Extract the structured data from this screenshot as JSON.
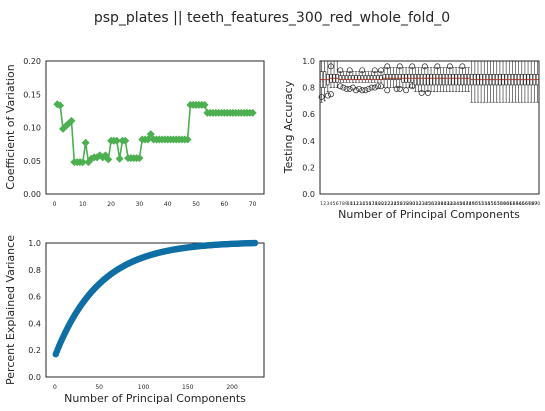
{
  "figure": {
    "suptitle": "psp_plates || teeth_features_300_red_whole_fold_0"
  },
  "colors": {
    "cv_green": "#4caf50",
    "box_black": "#222222",
    "median_red": "#c0392b",
    "pev_blue": "#0f6fa5",
    "axes_frame": "#262626"
  },
  "chart_data": [
    {
      "id": "cv",
      "type": "line",
      "marker": "diamond",
      "title": "",
      "xlabel": "",
      "ylabel": "Coefficient of Variation",
      "xlim": [
        -3,
        74
      ],
      "ylim": [
        0,
        0.2
      ],
      "xticks": [
        0,
        10,
        20,
        30,
        40,
        50,
        60,
        70
      ],
      "xtick_labels": [
        "0",
        "10",
        "20",
        "30",
        "40",
        "50",
        "60",
        "70"
      ],
      "yticks": [
        0,
        0.05,
        0.1,
        0.15,
        0.2
      ],
      "ytick_labels": [
        "0.00",
        "0.05",
        "0.10",
        "0.15",
        "0.20"
      ],
      "x": [
        1,
        2,
        3,
        4,
        5,
        6,
        7,
        8,
        9,
        10,
        11,
        12,
        13,
        14,
        15,
        16,
        17,
        18,
        19,
        20,
        21,
        22,
        23,
        24,
        25,
        26,
        27,
        28,
        29,
        30,
        31,
        32,
        33,
        34,
        35,
        36,
        37,
        38,
        39,
        40,
        41,
        42,
        43,
        44,
        45,
        46,
        47,
        48,
        49,
        50,
        51,
        52,
        53,
        54,
        55,
        56,
        57,
        58,
        59,
        60,
        61,
        62,
        63,
        64,
        65,
        66,
        67,
        68,
        69,
        70
      ],
      "y": [
        0.135,
        0.133,
        0.098,
        0.102,
        0.106,
        0.11,
        0.048,
        0.048,
        0.048,
        0.048,
        0.077,
        0.048,
        0.053,
        0.055,
        0.055,
        0.058,
        0.055,
        0.058,
        0.052,
        0.08,
        0.08,
        0.08,
        0.053,
        0.08,
        0.08,
        0.054,
        0.054,
        0.054,
        0.054,
        0.054,
        0.082,
        0.082,
        0.082,
        0.09,
        0.082,
        0.082,
        0.082,
        0.082,
        0.082,
        0.082,
        0.082,
        0.082,
        0.082,
        0.082,
        0.082,
        0.082,
        0.082,
        0.134,
        0.134,
        0.134,
        0.134,
        0.134,
        0.134,
        0.122,
        0.122,
        0.122,
        0.122,
        0.122,
        0.122,
        0.122,
        0.122,
        0.122,
        0.122,
        0.122,
        0.122,
        0.122,
        0.122,
        0.122,
        0.122,
        0.122
      ]
    },
    {
      "id": "acc",
      "type": "box",
      "title": "",
      "xlabel": "Number of Principal Components",
      "ylabel": "Testing Accuracy",
      "ylim": [
        0,
        1.0
      ],
      "yticks": [
        0,
        0.2,
        0.4,
        0.6,
        0.8,
        1.0
      ],
      "ytick_labels": [
        "0.0",
        "0.2",
        "0.4",
        "0.6",
        "0.8",
        "1.0"
      ],
      "tick_label_note": "70 densely packed, overlapping x tick labels (1..70)",
      "x": [
        1,
        2,
        3,
        4,
        5,
        6,
        7,
        8,
        9,
        10,
        11,
        12,
        13,
        14,
        15,
        16,
        17,
        18,
        19,
        20,
        21,
        22,
        23,
        24,
        25,
        26,
        27,
        28,
        29,
        30,
        31,
        32,
        33,
        34,
        35,
        36,
        37,
        38,
        39,
        40,
        41,
        42,
        43,
        44,
        45,
        46,
        47,
        48,
        49,
        50,
        51,
        52,
        53,
        54,
        55,
        56,
        57,
        58,
        59,
        60,
        61,
        62,
        63,
        64,
        65,
        66,
        67,
        68,
        69,
        70
      ],
      "median": [
        0.86,
        0.86,
        0.86,
        0.87,
        0.87,
        0.87,
        0.86,
        0.86,
        0.86,
        0.86,
        0.86,
        0.86,
        0.86,
        0.86,
        0.86,
        0.86,
        0.86,
        0.86,
        0.86,
        0.86,
        0.87,
        0.87,
        0.87,
        0.87,
        0.87,
        0.87,
        0.87,
        0.87,
        0.87,
        0.87,
        0.87,
        0.87,
        0.87,
        0.87,
        0.87,
        0.87,
        0.87,
        0.87,
        0.87,
        0.87,
        0.87,
        0.87,
        0.87,
        0.87,
        0.87,
        0.87,
        0.87,
        0.87,
        0.86,
        0.86,
        0.86,
        0.86,
        0.86,
        0.86,
        0.86,
        0.86,
        0.86,
        0.86,
        0.86,
        0.86,
        0.86,
        0.86,
        0.86,
        0.86,
        0.86,
        0.86,
        0.86,
        0.86,
        0.86,
        0.86
      ],
      "q1": [
        0.8,
        0.8,
        0.82,
        0.84,
        0.84,
        0.84,
        0.86,
        0.86,
        0.86,
        0.86,
        0.86,
        0.86,
        0.86,
        0.86,
        0.86,
        0.86,
        0.86,
        0.86,
        0.86,
        0.86,
        0.86,
        0.86,
        0.86,
        0.86,
        0.86,
        0.86,
        0.84,
        0.84,
        0.84,
        0.84,
        0.82,
        0.82,
        0.82,
        0.82,
        0.82,
        0.82,
        0.82,
        0.82,
        0.82,
        0.82,
        0.82,
        0.82,
        0.82,
        0.82,
        0.82,
        0.82,
        0.82,
        0.82,
        0.82,
        0.82,
        0.82,
        0.82,
        0.82,
        0.82,
        0.82,
        0.82,
        0.82,
        0.82,
        0.82,
        0.82,
        0.82,
        0.82,
        0.82,
        0.82,
        0.82,
        0.82,
        0.82,
        0.82,
        0.82,
        0.82
      ],
      "q3": [
        0.92,
        0.92,
        0.9,
        0.9,
        0.9,
        0.9,
        0.89,
        0.89,
        0.89,
        0.89,
        0.89,
        0.89,
        0.89,
        0.89,
        0.89,
        0.89,
        0.89,
        0.89,
        0.89,
        0.89,
        0.9,
        0.9,
        0.9,
        0.9,
        0.9,
        0.9,
        0.9,
        0.9,
        0.9,
        0.9,
        0.9,
        0.9,
        0.9,
        0.9,
        0.9,
        0.9,
        0.9,
        0.9,
        0.9,
        0.9,
        0.9,
        0.9,
        0.9,
        0.9,
        0.9,
        0.9,
        0.9,
        0.9,
        0.9,
        0.9,
        0.9,
        0.9,
        0.9,
        0.9,
        0.9,
        0.9,
        0.9,
        0.9,
        0.9,
        0.9,
        0.9,
        0.9,
        0.9,
        0.9,
        0.9,
        0.9,
        0.9,
        0.9,
        0.9,
        0.9
      ],
      "whisker_low": [
        0.69,
        0.7,
        0.77,
        0.8,
        0.8,
        0.8,
        0.84,
        0.84,
        0.84,
        0.84,
        0.84,
        0.84,
        0.84,
        0.84,
        0.84,
        0.84,
        0.84,
        0.84,
        0.84,
        0.84,
        0.8,
        0.8,
        0.8,
        0.8,
        0.8,
        0.8,
        0.8,
        0.8,
        0.8,
        0.8,
        0.77,
        0.77,
        0.77,
        0.77,
        0.77,
        0.77,
        0.77,
        0.77,
        0.77,
        0.77,
        0.77,
        0.77,
        0.77,
        0.77,
        0.77,
        0.77,
        0.77,
        0.77,
        0.69,
        0.69,
        0.69,
        0.69,
        0.69,
        0.69,
        0.69,
        0.69,
        0.69,
        0.69,
        0.69,
        0.69,
        0.69,
        0.69,
        0.69,
        0.69,
        0.69,
        0.69,
        0.69,
        0.69,
        0.69,
        0.69
      ],
      "whisker_high": [
        1.0,
        1.0,
        1.0,
        1.0,
        1.0,
        1.0,
        0.92,
        0.92,
        0.92,
        0.92,
        0.92,
        0.92,
        0.92,
        0.92,
        0.92,
        0.92,
        0.92,
        0.92,
        0.92,
        0.92,
        0.95,
        0.95,
        0.95,
        0.95,
        0.95,
        0.95,
        0.95,
        0.95,
        0.95,
        0.95,
        0.95,
        0.95,
        0.95,
        0.95,
        0.95,
        0.95,
        0.95,
        0.95,
        0.95,
        0.95,
        0.95,
        0.95,
        0.95,
        0.95,
        0.95,
        0.95,
        0.95,
        0.95,
        1.0,
        1.0,
        1.0,
        1.0,
        1.0,
        1.0,
        1.0,
        1.0,
        1.0,
        1.0,
        1.0,
        1.0,
        1.0,
        1.0,
        1.0,
        1.0,
        1.0,
        1.0,
        1.0,
        1.0,
        1.0,
        1.0
      ],
      "outliers": [
        [
          1,
          0.73
        ],
        [
          3,
          0.74
        ],
        [
          4,
          0.75
        ],
        [
          7,
          0.81
        ],
        [
          8,
          0.8
        ],
        [
          9,
          0.79
        ],
        [
          10,
          0.79
        ],
        [
          11,
          0.8
        ],
        [
          12,
          0.78
        ],
        [
          13,
          0.79
        ],
        [
          14,
          0.78
        ],
        [
          15,
          0.78
        ],
        [
          16,
          0.79
        ],
        [
          17,
          0.8
        ],
        [
          18,
          0.8
        ],
        [
          19,
          0.81
        ],
        [
          20,
          0.81
        ],
        [
          7,
          0.93
        ],
        [
          10,
          0.93
        ],
        [
          14,
          0.93
        ],
        [
          18,
          0.93
        ],
        [
          20,
          0.93
        ],
        [
          22,
          0.78
        ],
        [
          25,
          0.79
        ],
        [
          26,
          0.79
        ],
        [
          28,
          0.78
        ],
        [
          30,
          0.81
        ],
        [
          33,
          0.76
        ],
        [
          35,
          0.76
        ],
        [
          4,
          0.96
        ],
        [
          22,
          0.96
        ],
        [
          26,
          0.96
        ],
        [
          30,
          0.96
        ],
        [
          34,
          0.96
        ],
        [
          38,
          0.96
        ],
        [
          42,
          0.96
        ],
        [
          46,
          0.96
        ]
      ]
    },
    {
      "id": "pev",
      "type": "line",
      "marker": "circle",
      "title": "",
      "xlabel": "Number of Principal Components",
      "ylabel": "Percent Explained Variance",
      "xlim": [
        -10,
        236
      ],
      "ylim": [
        0,
        1.0
      ],
      "xticks": [
        0,
        50,
        100,
        150,
        200
      ],
      "xtick_labels": [
        "0",
        "50",
        "100",
        "150",
        "200"
      ],
      "yticks": [
        0,
        0.2,
        0.4,
        0.6,
        0.8,
        1.0
      ],
      "ytick_labels": [
        "0.0",
        "0.2",
        "0.4",
        "0.6",
        "0.8",
        "1.0"
      ],
      "n_components": 226,
      "y_first": 0.17,
      "y_last": 1.0,
      "curve_shape": "cumulative explained variance, concave increasing"
    }
  ]
}
